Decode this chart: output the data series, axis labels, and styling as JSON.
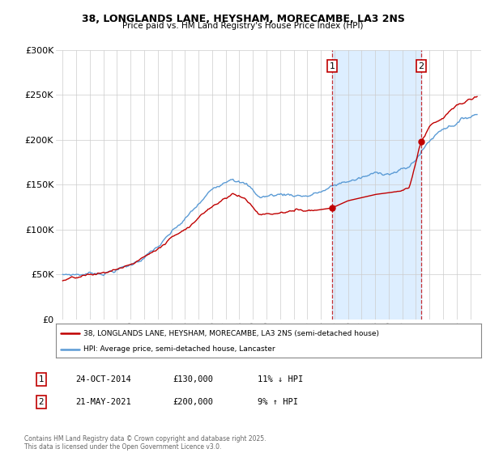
{
  "title1": "38, LONGLANDS LANE, HEYSHAM, MORECAMBE, LA3 2NS",
  "title2": "Price paid vs. HM Land Registry's House Price Index (HPI)",
  "legend_label1": "38, LONGLANDS LANE, HEYSHAM, MORECAMBE, LA3 2NS (semi-detached house)",
  "legend_label2": "HPI: Average price, semi-detached house, Lancaster",
  "annotation1_box": "1",
  "annotation1_date": "24-OCT-2014",
  "annotation1_price": "£130,000",
  "annotation1_hpi": "11% ↓ HPI",
  "annotation2_box": "2",
  "annotation2_date": "21-MAY-2021",
  "annotation2_price": "£200,000",
  "annotation2_hpi": "9% ↑ HPI",
  "footer": "Contains HM Land Registry data © Crown copyright and database right 2025.\nThis data is licensed under the Open Government Licence v3.0.",
  "sale1_year": 2014.82,
  "sale1_price": 130000,
  "sale2_year": 2021.39,
  "sale2_price": 200000,
  "hpi_color": "#5b9bd5",
  "price_color": "#c00000",
  "shaded_color": "#ddeeff",
  "vline_color": "#c00000",
  "background": "#ffffff",
  "ylim": [
    0,
    300000
  ],
  "yticks": [
    0,
    50000,
    100000,
    150000,
    200000,
    250000,
    300000
  ],
  "ytick_labels": [
    "£0",
    "£50K",
    "£100K",
    "£150K",
    "£200K",
    "£250K",
    "£300K"
  ],
  "xlim_start": 1994.5,
  "xlim_end": 2025.8
}
